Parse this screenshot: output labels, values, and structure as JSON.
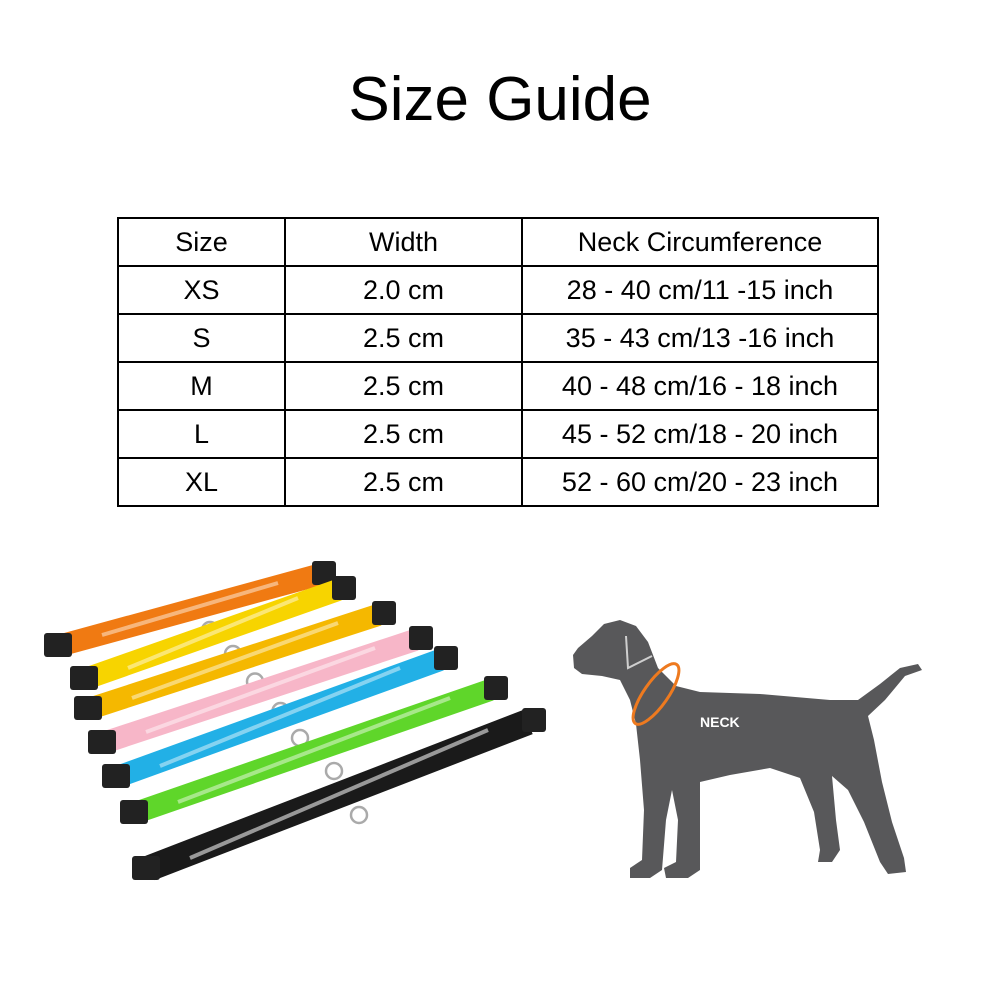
{
  "title": "Size Guide",
  "table": {
    "headers": [
      "Size",
      "Width",
      "Neck Circumference"
    ],
    "rows": [
      [
        "XS",
        "2.0 cm",
        "28 - 40 cm/11 -15 inch"
      ],
      [
        "S",
        "2.5 cm",
        "35 - 43 cm/13 -16 inch"
      ],
      [
        "M",
        "2.5 cm",
        "40 - 48 cm/16 - 18 inch"
      ],
      [
        "L",
        "2.5 cm",
        "45 - 52 cm/18 - 20 inch"
      ],
      [
        "XL",
        "2.5 cm",
        "52 - 60 cm/20 - 23 inch"
      ]
    ]
  },
  "collars": {
    "colors": [
      "#f07a12",
      "#f7d400",
      "#f5b800",
      "#f7b6c8",
      "#22b0e6",
      "#5fd62a",
      "#1a1a1a"
    ]
  },
  "dog_diagram": {
    "label": "NECK",
    "body_color": "#58585a",
    "neck_ring_color": "#ee7a1f"
  }
}
